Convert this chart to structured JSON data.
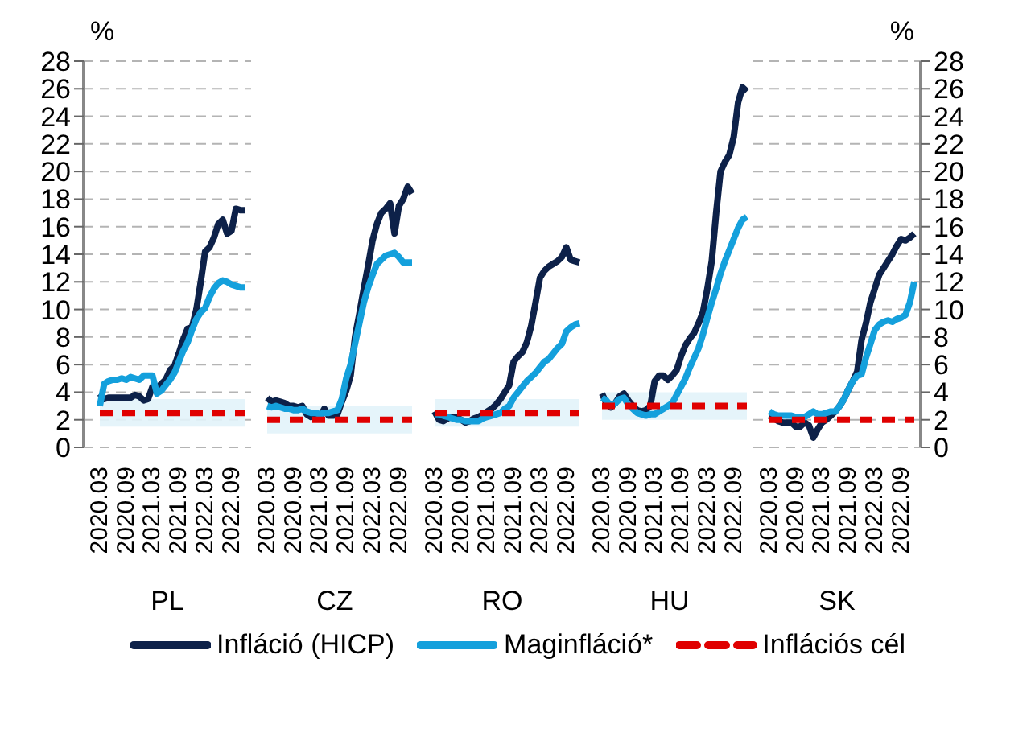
{
  "chart_data": [
    {
      "type": "line",
      "xlabel": "PL",
      "ylabel": "%",
      "categories": [
        "2020.03",
        null,
        null,
        null,
        null,
        null,
        "2020.09",
        null,
        null,
        null,
        null,
        null,
        "2021.03",
        null,
        null,
        null,
        null,
        null,
        "2021.09",
        null,
        null,
        null,
        null,
        null,
        "2022.03",
        null,
        null,
        null,
        null,
        null,
        "2022.09",
        null,
        null,
        null
      ],
      "ylim": [
        0,
        28
      ],
      "yticks": [
        0,
        2,
        4,
        6,
        8,
        10,
        12,
        14,
        16,
        18,
        20,
        22,
        24,
        26,
        28
      ],
      "grid": "y",
      "legend": "bottom",
      "bands": [
        {
          "axis": "y",
          "from": 1.5,
          "to": 3.5,
          "color": "#e2f3fa"
        }
      ],
      "series": [
        {
          "name": "Infláció (HICP)",
          "color": "#0d2149",
          "values": [
            3.9,
            3.5,
            3.6,
            3.6,
            3.6,
            3.6,
            3.6,
            3.6,
            3.8,
            3.7,
            3.4,
            3.5,
            4.4,
            4.3,
            4.6,
            4.9,
            5.6,
            5.9,
            6.8,
            7.8,
            8.6,
            8.7,
            10.0,
            12.0,
            14.2,
            14.5,
            15.2,
            16.2,
            16.5,
            15.5,
            15.7,
            17.3,
            17.2,
            17.2
          ]
        },
        {
          "name": "Maginfláció*",
          "color": "#14a0dc",
          "values": [
            3.0,
            4.6,
            4.8,
            4.9,
            4.9,
            5.0,
            4.9,
            5.1,
            5.0,
            4.9,
            5.2,
            5.2,
            5.2,
            3.9,
            4.1,
            4.5,
            4.9,
            5.4,
            6.2,
            7.0,
            7.6,
            8.5,
            9.3,
            9.8,
            10.1,
            10.9,
            11.5,
            11.9,
            12.1,
            12.0,
            11.8,
            11.7,
            11.6,
            11.6
          ]
        },
        {
          "name": "Inflációs cél",
          "color": "#e00000",
          "line_style": "dashed",
          "values": [
            2.5,
            2.5,
            2.5,
            2.5,
            2.5,
            2.5,
            2.5,
            2.5,
            2.5,
            2.5,
            2.5,
            2.5,
            2.5,
            2.5,
            2.5,
            2.5,
            2.5,
            2.5,
            2.5,
            2.5,
            2.5,
            2.5,
            2.5,
            2.5,
            2.5,
            2.5,
            2.5,
            2.5,
            2.5,
            2.5,
            2.5,
            2.5,
            2.5,
            2.5
          ]
        }
      ]
    },
    {
      "type": "line",
      "xlabel": "CZ",
      "categories": [
        "2020.03",
        null,
        null,
        null,
        null,
        null,
        "2020.09",
        null,
        null,
        null,
        null,
        null,
        "2021.03",
        null,
        null,
        null,
        null,
        null,
        "2021.09",
        null,
        null,
        null,
        null,
        null,
        "2022.03",
        null,
        null,
        null,
        null,
        null,
        "2022.09",
        null,
        null,
        null
      ],
      "ylim": [
        0,
        28
      ],
      "yticks": [
        0,
        2,
        4,
        6,
        8,
        10,
        12,
        14,
        16,
        18,
        20,
        22,
        24,
        26,
        28
      ],
      "tick_labels": "x",
      "grid": "y",
      "bands": [
        {
          "axis": "y",
          "from": 1,
          "to": 3,
          "color": "#e2f3fa"
        }
      ],
      "series": [
        {
          "color": "#0d2149",
          "values": [
            3.6,
            3.3,
            3.4,
            3.3,
            3.2,
            3.0,
            3.0,
            2.9,
            3.0,
            2.4,
            2.2,
            2.3,
            2.2,
            2.8,
            2.3,
            2.3,
            2.4,
            3.3,
            4.1,
            5.2,
            8.0,
            9.7,
            11.5,
            13.2,
            15.0,
            16.2,
            17.0,
            17.3,
            17.7,
            15.5,
            17.5,
            18.0,
            18.9,
            18.4
          ]
        },
        {
          "color": "#14a0dc",
          "values": [
            3.0,
            2.9,
            3.0,
            2.9,
            2.8,
            2.8,
            2.7,
            2.7,
            2.8,
            2.6,
            2.5,
            2.5,
            2.4,
            2.5,
            2.5,
            2.6,
            2.7,
            3.5,
            5.0,
            6.0,
            7.5,
            9.0,
            10.5,
            11.6,
            12.5,
            13.3,
            13.6,
            13.9,
            14.0,
            14.1,
            13.8,
            13.4,
            13.4,
            13.4
          ]
        },
        {
          "color": "#e00000",
          "line_style": "dashed",
          "values": [
            2,
            2,
            2,
            2,
            2,
            2,
            2,
            2,
            2,
            2,
            2,
            2,
            2,
            2,
            2,
            2,
            2,
            2,
            2,
            2,
            2,
            2,
            2,
            2,
            2,
            2,
            2,
            2,
            2,
            2,
            2,
            2,
            2,
            2
          ]
        }
      ]
    },
    {
      "type": "line",
      "xlabel": "RO",
      "categories": [
        "2020.03",
        null,
        null,
        null,
        null,
        null,
        "2020.09",
        null,
        null,
        null,
        null,
        null,
        "2021.03",
        null,
        null,
        null,
        null,
        null,
        "2021.09",
        null,
        null,
        null,
        null,
        null,
        "2022.03",
        null,
        null,
        null,
        null,
        null,
        "2022.09",
        null,
        null,
        null
      ],
      "ylim": [
        0,
        28
      ],
      "yticks": [
        0,
        2,
        4,
        6,
        8,
        10,
        12,
        14,
        16,
        18,
        20,
        22,
        24,
        26,
        28
      ],
      "tick_labels": "x",
      "grid": "y",
      "bands": [
        {
          "axis": "y",
          "from": 1.5,
          "to": 3.5,
          "color": "#e2f3fa"
        }
      ],
      "series": [
        {
          "color": "#0d2149",
          "values": [
            2.6,
            2.0,
            1.9,
            2.1,
            2.2,
            2.2,
            2.0,
            1.8,
            1.9,
            2.1,
            2.2,
            2.4,
            2.6,
            2.8,
            3.1,
            3.5,
            4.0,
            4.5,
            6.2,
            6.6,
            6.9,
            7.6,
            8.8,
            10.5,
            12.3,
            12.8,
            13.1,
            13.3,
            13.5,
            13.8,
            14.5,
            13.6,
            13.5,
            13.4
          ]
        },
        {
          "color": "#14a0dc",
          "values": [
            2.4,
            2.4,
            2.3,
            2.2,
            2.1,
            2.0,
            2.0,
            1.9,
            1.9,
            1.9,
            1.9,
            2.1,
            2.2,
            2.3,
            2.4,
            2.5,
            2.8,
            3.0,
            3.6,
            4.0,
            4.4,
            4.8,
            5.1,
            5.4,
            5.8,
            6.2,
            6.4,
            6.8,
            7.2,
            7.5,
            8.4,
            8.7,
            8.9,
            9.0
          ]
        },
        {
          "color": "#e00000",
          "line_style": "dashed",
          "values": [
            2.5,
            2.5,
            2.5,
            2.5,
            2.5,
            2.5,
            2.5,
            2.5,
            2.5,
            2.5,
            2.5,
            2.5,
            2.5,
            2.5,
            2.5,
            2.5,
            2.5,
            2.5,
            2.5,
            2.5,
            2.5,
            2.5,
            2.5,
            2.5,
            2.5,
            2.5,
            2.5,
            2.5,
            2.5,
            2.5,
            2.5,
            2.5,
            2.5,
            2.5
          ]
        }
      ]
    },
    {
      "type": "line",
      "xlabel": "HU",
      "categories": [
        "2020.03",
        null,
        null,
        null,
        null,
        null,
        "2020.09",
        null,
        null,
        null,
        null,
        null,
        "2021.03",
        null,
        null,
        null,
        null,
        null,
        "2021.09",
        null,
        null,
        null,
        null,
        null,
        "2022.03",
        null,
        null,
        null,
        null,
        null,
        "2022.09",
        null,
        null,
        null
      ],
      "ylim": [
        0,
        28
      ],
      "yticks": [
        0,
        2,
        4,
        6,
        8,
        10,
        12,
        14,
        16,
        18,
        20,
        22,
        24,
        26,
        28
      ],
      "tick_labels": "x",
      "grid": "y",
      "bands": [
        {
          "axis": "y",
          "from": 2,
          "to": 4,
          "color": "#e2f3fa"
        }
      ],
      "series": [
        {
          "color": "#0d2149",
          "values": [
            3.9,
            3.2,
            2.9,
            3.2,
            3.7,
            3.9,
            3.4,
            3.0,
            2.7,
            2.6,
            2.7,
            3.0,
            4.8,
            5.2,
            5.2,
            4.9,
            5.2,
            5.6,
            6.6,
            7.4,
            7.9,
            8.3,
            9.0,
            9.8,
            11.5,
            13.5,
            17.0,
            20.0,
            20.7,
            21.2,
            22.5,
            25.0,
            26.1,
            25.8
          ]
        },
        {
          "color": "#14a0dc",
          "values": [
            3.6,
            3.4,
            3.0,
            3.2,
            3.5,
            3.6,
            3.1,
            2.8,
            2.5,
            2.4,
            2.3,
            2.4,
            2.4,
            2.6,
            2.8,
            3.0,
            3.2,
            3.8,
            4.4,
            5.0,
            5.8,
            6.5,
            7.2,
            8.2,
            9.4,
            10.5,
            11.5,
            12.6,
            13.5,
            14.3,
            15.1,
            15.9,
            16.5,
            16.7
          ]
        },
        {
          "color": "#e00000",
          "line_style": "dashed",
          "values": [
            3,
            3,
            3,
            3,
            3,
            3,
            3,
            3,
            3,
            3,
            3,
            3,
            3,
            3,
            3,
            3,
            3,
            3,
            3,
            3,
            3,
            3,
            3,
            3,
            3,
            3,
            3,
            3,
            3,
            3,
            3,
            3,
            3,
            3
          ]
        }
      ]
    },
    {
      "type": "line",
      "xlabel": "SK",
      "y2label": "%",
      "categories": [
        "2020.03",
        null,
        null,
        null,
        null,
        null,
        "2020.09",
        null,
        null,
        null,
        null,
        null,
        "2021.03",
        null,
        null,
        null,
        null,
        null,
        "2021.09",
        null,
        null,
        null,
        null,
        null,
        "2022.03",
        null,
        null,
        null,
        null,
        null,
        "2022.09",
        null,
        null,
        null
      ],
      "y2lim": [
        0,
        28
      ],
      "y2ticks": [
        0,
        2,
        4,
        6,
        8,
        10,
        12,
        14,
        16,
        18,
        20,
        22,
        24,
        26,
        28
      ],
      "grid": "y",
      "series": [
        {
          "color": "#0d2149",
          "axis": "y2",
          "values": [
            2.3,
            2.1,
            1.9,
            1.8,
            1.8,
            1.8,
            1.5,
            1.5,
            1.8,
            1.6,
            0.7,
            1.3,
            1.8,
            2.0,
            2.3,
            2.6,
            3.0,
            3.5,
            4.2,
            4.8,
            5.5,
            7.8,
            9.0,
            10.5,
            11.5,
            12.5,
            13.0,
            13.5,
            14.0,
            14.6,
            15.1,
            15.0,
            15.2,
            15.5
          ]
        },
        {
          "color": "#14a0dc",
          "axis": "y2",
          "values": [
            2.6,
            2.4,
            2.3,
            2.3,
            2.3,
            2.3,
            2.2,
            2.2,
            2.2,
            2.4,
            2.6,
            2.4,
            2.4,
            2.5,
            2.6,
            2.6,
            3.0,
            3.5,
            4.2,
            4.8,
            5.2,
            5.3,
            6.5,
            7.5,
            8.5,
            8.9,
            9.1,
            9.2,
            9.1,
            9.3,
            9.4,
            9.6,
            10.5,
            12.0
          ]
        },
        {
          "color": "#e00000",
          "axis": "y2",
          "line_style": "dashed",
          "values": [
            2,
            2,
            2,
            2,
            2,
            2,
            2,
            2,
            2,
            2,
            2,
            2,
            2,
            2,
            2,
            2,
            2,
            2,
            2,
            2,
            2,
            2,
            2,
            2,
            2,
            2,
            2,
            2,
            2,
            2,
            2,
            2,
            2,
            2
          ]
        }
      ]
    }
  ]
}
